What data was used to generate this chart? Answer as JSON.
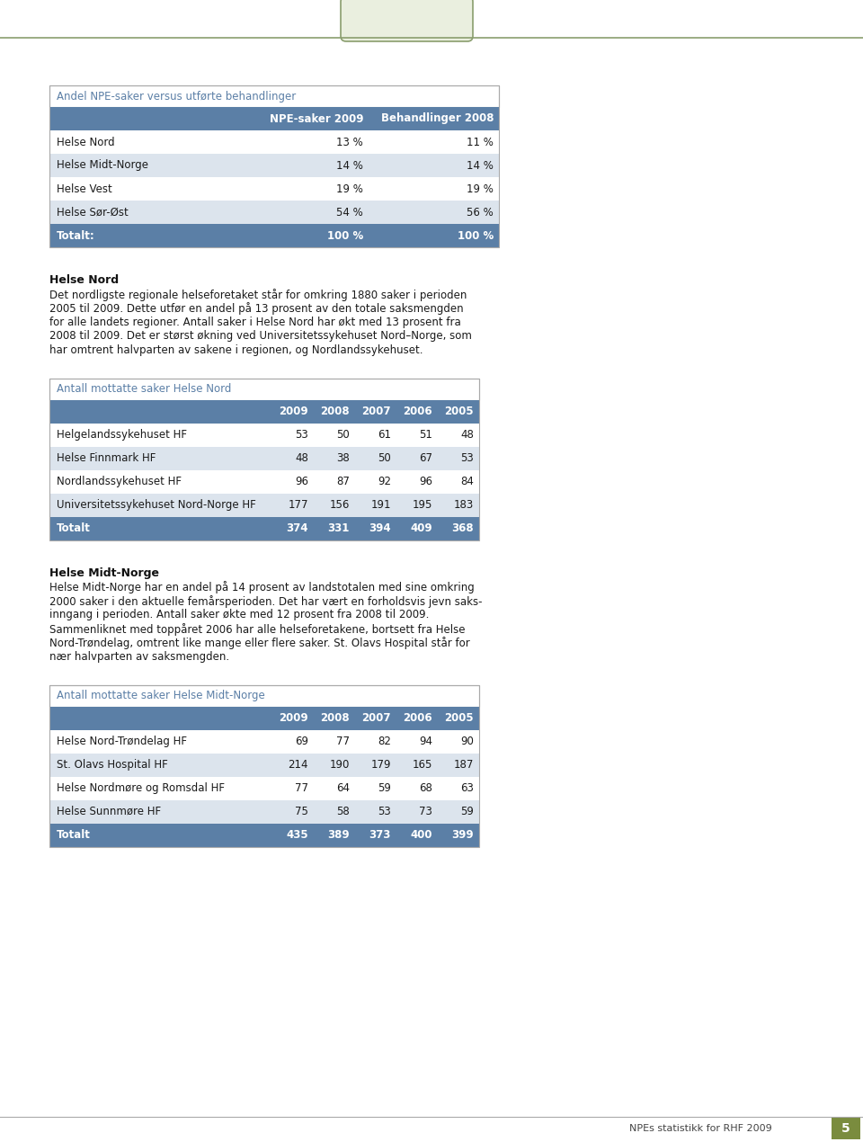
{
  "page_bg": "#ffffff",
  "content_bg": "#ffffff",
  "header_color": "#5b7fa6",
  "header_text_color": "#ffffff",
  "row_alt_color": "#dce4ed",
  "row_normal_color": "#ffffff",
  "total_row_color": "#5b7fa6",
  "total_text_color": "#ffffff",
  "title_color": "#5b7fa6",
  "border_color": "#aaaaaa",
  "tab_border_color": "#8a9e6e",
  "tab_bg": "#eaefdf",
  "table1_title": "Andel NPE-saker versus utførte behandlinger",
  "table1_headers": [
    "",
    "NPE-saker 2009",
    "Behandlinger 2008"
  ],
  "table1_rows": [
    [
      "Helse Nord",
      "13 %",
      "11 %"
    ],
    [
      "Helse Midt-Norge",
      "14 %",
      "14 %"
    ],
    [
      "Helse Vest",
      "19 %",
      "19 %"
    ],
    [
      "Helse Sør-Øst",
      "54 %",
      "56 %"
    ]
  ],
  "table1_total": [
    "Totalt:",
    "100 %",
    "100 %"
  ],
  "section1_title": "Helse Nord",
  "section1_text": "Det nordligste regionale helseforetaket står for omkring 1880 saker i perioden\n2005 til 2009. Dette utfør en andel på 13 prosent av den totale saksmengden\nfor alle landets regioner. Antall saker i Helse Nord har økt med 13 prosent fra\n2008 til 2009. Det er størst økning ved Universitetssykehuset Nord–Norge, som\nhar omtrent halvparten av sakene i regionen, og Nordlandssykehuset.",
  "table2_title": "Antall mottatte saker Helse Nord",
  "table2_headers": [
    "",
    "2009",
    "2008",
    "2007",
    "2006",
    "2005"
  ],
  "table2_rows": [
    [
      "Helgelandssykehuset HF",
      "53",
      "50",
      "61",
      "51",
      "48"
    ],
    [
      "Helse Finnmark HF",
      "48",
      "38",
      "50",
      "67",
      "53"
    ],
    [
      "Nordlandssykehuset HF",
      "96",
      "87",
      "92",
      "96",
      "84"
    ],
    [
      "Universitetssykehuset Nord-Norge HF",
      "177",
      "156",
      "191",
      "195",
      "183"
    ]
  ],
  "table2_total": [
    "Totalt",
    "374",
    "331",
    "394",
    "409",
    "368"
  ],
  "section2_title": "Helse Midt-Norge",
  "section2_text": "Helse Midt-Norge har en andel på 14 prosent av landstotalen med sine omkring\n2000 saker i den aktuelle femårsperioden. Det har vært en forholdsvis jevn saks-\ninngang i perioden. Antall saker økte med 12 prosent fra 2008 til 2009.\nSammenliknet med toppåret 2006 har alle helseforetakene, bortsett fra Helse\nNord-Trøndelag, omtrent like mange eller flere saker. St. Olavs Hospital står for\nnær halvparten av saksmengden.",
  "table3_title": "Antall mottatte saker Helse Midt-Norge",
  "table3_headers": [
    "",
    "2009",
    "2008",
    "2007",
    "2006",
    "2005"
  ],
  "table3_rows": [
    [
      "Helse Nord-Trøndelag HF",
      "69",
      "77",
      "82",
      "94",
      "90"
    ],
    [
      "St. Olavs Hospital HF",
      "214",
      "190",
      "179",
      "165",
      "187"
    ],
    [
      "Helse Nordmøre og Romsdal HF",
      "77",
      "64",
      "59",
      "68",
      "63"
    ],
    [
      "Helse Sunnmøre HF",
      "75",
      "58",
      "53",
      "73",
      "59"
    ]
  ],
  "table3_total": [
    "Totalt",
    "435",
    "389",
    "373",
    "400",
    "399"
  ],
  "footer_text": "NPEs statistikk for RHF 2009",
  "page_number": "5",
  "footer_bg": "#7a8c3e"
}
